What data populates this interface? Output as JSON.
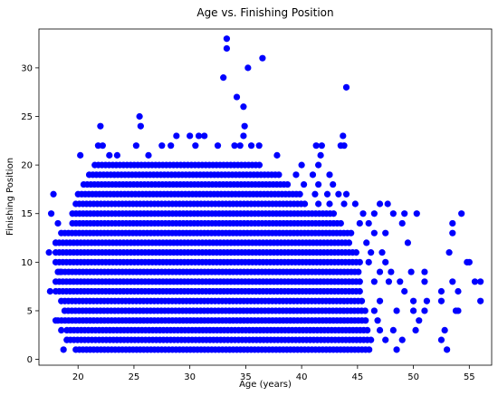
{
  "chart_data": {
    "type": "scatter",
    "title": "Age vs. Finishing Position",
    "xlabel": "Age (years)",
    "ylabel": "Finishing Position",
    "xlim": [
      16.5,
      57.0
    ],
    "ylim": [
      -0.6,
      34.0
    ],
    "xticks": [
      20,
      25,
      30,
      35,
      40,
      45,
      50,
      55
    ],
    "yticks": [
      0,
      5,
      10,
      15,
      20,
      25,
      30
    ],
    "grid": false,
    "marker_color": "#0000ff",
    "dense_band": {
      "description": "every integer position is densely populated across the age range",
      "rows": [
        {
          "y": 1,
          "x_from": 19.8,
          "x_to": 46.3
        },
        {
          "y": 2,
          "x_from": 19.0,
          "x_to": 46.5
        },
        {
          "y": 3,
          "x_from": 19.0,
          "x_to": 46.0
        },
        {
          "y": 4,
          "x_from": 18.2,
          "x_to": 45.8
        },
        {
          "y": 5,
          "x_from": 18.8,
          "x_to": 45.8
        },
        {
          "y": 6,
          "x_from": 18.5,
          "x_to": 45.5
        },
        {
          "y": 7,
          "x_from": 18.0,
          "x_to": 45.3
        },
        {
          "y": 8,
          "x_from": 18.0,
          "x_to": 45.3
        },
        {
          "y": 9,
          "x_from": 18.2,
          "x_to": 45.3
        },
        {
          "y": 10,
          "x_from": 18.0,
          "x_to": 45.3
        },
        {
          "y": 11,
          "x_from": 18.0,
          "x_to": 45.0
        },
        {
          "y": 12,
          "x_from": 18.0,
          "x_to": 44.5
        },
        {
          "y": 13,
          "x_from": 18.5,
          "x_to": 44.5
        },
        {
          "y": 14,
          "x_from": 19.5,
          "x_to": 43.5
        },
        {
          "y": 15,
          "x_from": 19.5,
          "x_to": 43.0
        },
        {
          "y": 16,
          "x_from": 19.8,
          "x_to": 40.5
        },
        {
          "y": 17,
          "x_from": 20.0,
          "x_to": 40.0
        },
        {
          "y": 18,
          "x_from": 20.5,
          "x_to": 39.0
        },
        {
          "y": 19,
          "x_from": 21.0,
          "x_to": 38.0
        },
        {
          "y": 20,
          "x_from": 21.5,
          "x_to": 36.5
        }
      ]
    },
    "points": [
      {
        "x": 17.8,
        "y": 17
      },
      {
        "x": 17.6,
        "y": 15
      },
      {
        "x": 18.0,
        "y": 12
      },
      {
        "x": 17.4,
        "y": 11
      },
      {
        "x": 17.5,
        "y": 7
      },
      {
        "x": 18.0,
        "y": 4
      },
      {
        "x": 18.5,
        "y": 3
      },
      {
        "x": 18.7,
        "y": 1
      },
      {
        "x": 18.4,
        "y": 9
      },
      {
        "x": 19.0,
        "y": 2
      },
      {
        "x": 18.2,
        "y": 14
      },
      {
        "x": 20.2,
        "y": 21
      },
      {
        "x": 22.0,
        "y": 24
      },
      {
        "x": 22.2,
        "y": 22
      },
      {
        "x": 21.8,
        "y": 22
      },
      {
        "x": 22.8,
        "y": 21
      },
      {
        "x": 23.5,
        "y": 21
      },
      {
        "x": 25.5,
        "y": 25
      },
      {
        "x": 25.6,
        "y": 24
      },
      {
        "x": 25.2,
        "y": 22
      },
      {
        "x": 26.3,
        "y": 21
      },
      {
        "x": 27.5,
        "y": 22
      },
      {
        "x": 28.8,
        "y": 23
      },
      {
        "x": 28.3,
        "y": 22
      },
      {
        "x": 30.0,
        "y": 23
      },
      {
        "x": 30.8,
        "y": 23
      },
      {
        "x": 31.3,
        "y": 23
      },
      {
        "x": 30.5,
        "y": 22
      },
      {
        "x": 32.5,
        "y": 22
      },
      {
        "x": 34.0,
        "y": 22
      },
      {
        "x": 34.8,
        "y": 23
      },
      {
        "x": 34.5,
        "y": 22
      },
      {
        "x": 35.5,
        "y": 22
      },
      {
        "x": 36.2,
        "y": 22
      },
      {
        "x": 37.8,
        "y": 21
      },
      {
        "x": 33.3,
        "y": 33
      },
      {
        "x": 33.3,
        "y": 32
      },
      {
        "x": 36.5,
        "y": 31
      },
      {
        "x": 35.2,
        "y": 30
      },
      {
        "x": 33.0,
        "y": 29
      },
      {
        "x": 34.2,
        "y": 27
      },
      {
        "x": 34.8,
        "y": 26
      },
      {
        "x": 34.9,
        "y": 24
      },
      {
        "x": 44.0,
        "y": 28
      },
      {
        "x": 43.7,
        "y": 23
      },
      {
        "x": 43.8,
        "y": 22
      },
      {
        "x": 43.5,
        "y": 22
      },
      {
        "x": 41.3,
        "y": 22
      },
      {
        "x": 41.8,
        "y": 22
      },
      {
        "x": 41.7,
        "y": 21
      },
      {
        "x": 41.5,
        "y": 20
      },
      {
        "x": 40.0,
        "y": 20
      },
      {
        "x": 42.5,
        "y": 19
      },
      {
        "x": 41.0,
        "y": 19
      },
      {
        "x": 39.5,
        "y": 19
      },
      {
        "x": 42.8,
        "y": 18
      },
      {
        "x": 41.5,
        "y": 18
      },
      {
        "x": 40.2,
        "y": 18
      },
      {
        "x": 41.2,
        "y": 17
      },
      {
        "x": 42.3,
        "y": 17
      },
      {
        "x": 43.3,
        "y": 17
      },
      {
        "x": 44.0,
        "y": 17
      },
      {
        "x": 41.5,
        "y": 16
      },
      {
        "x": 42.5,
        "y": 16
      },
      {
        "x": 43.8,
        "y": 16
      },
      {
        "x": 44.8,
        "y": 16
      },
      {
        "x": 47.0,
        "y": 16
      },
      {
        "x": 47.7,
        "y": 16
      },
      {
        "x": 45.5,
        "y": 15
      },
      {
        "x": 46.5,
        "y": 15
      },
      {
        "x": 48.2,
        "y": 15
      },
      {
        "x": 49.2,
        "y": 15
      },
      {
        "x": 50.3,
        "y": 15
      },
      {
        "x": 45.2,
        "y": 14
      },
      {
        "x": 46.0,
        "y": 14
      },
      {
        "x": 49.0,
        "y": 14
      },
      {
        "x": 46.5,
        "y": 13
      },
      {
        "x": 47.5,
        "y": 13
      },
      {
        "x": 45.8,
        "y": 12
      },
      {
        "x": 49.5,
        "y": 12
      },
      {
        "x": 46.2,
        "y": 11
      },
      {
        "x": 47.2,
        "y": 11
      },
      {
        "x": 46.0,
        "y": 10
      },
      {
        "x": 47.5,
        "y": 10
      },
      {
        "x": 47.0,
        "y": 9
      },
      {
        "x": 48.0,
        "y": 9
      },
      {
        "x": 49.8,
        "y": 9
      },
      {
        "x": 51.0,
        "y": 9
      },
      {
        "x": 46.5,
        "y": 8
      },
      {
        "x": 47.8,
        "y": 8
      },
      {
        "x": 48.8,
        "y": 8
      },
      {
        "x": 51.0,
        "y": 8
      },
      {
        "x": 49.2,
        "y": 7
      },
      {
        "x": 52.5,
        "y": 7
      },
      {
        "x": 47.0,
        "y": 6
      },
      {
        "x": 50.0,
        "y": 6
      },
      {
        "x": 51.2,
        "y": 6
      },
      {
        "x": 52.5,
        "y": 6
      },
      {
        "x": 46.5,
        "y": 5
      },
      {
        "x": 48.5,
        "y": 5
      },
      {
        "x": 50.0,
        "y": 5
      },
      {
        "x": 51.0,
        "y": 5
      },
      {
        "x": 46.8,
        "y": 4
      },
      {
        "x": 50.5,
        "y": 4
      },
      {
        "x": 47.0,
        "y": 3
      },
      {
        "x": 48.2,
        "y": 3
      },
      {
        "x": 50.2,
        "y": 3
      },
      {
        "x": 52.8,
        "y": 3
      },
      {
        "x": 47.5,
        "y": 2
      },
      {
        "x": 49.0,
        "y": 2
      },
      {
        "x": 52.5,
        "y": 2
      },
      {
        "x": 53.0,
        "y": 1
      },
      {
        "x": 48.5,
        "y": 1
      },
      {
        "x": 53.5,
        "y": 14
      },
      {
        "x": 54.3,
        "y": 15
      },
      {
        "x": 53.5,
        "y": 13
      },
      {
        "x": 53.2,
        "y": 11
      },
      {
        "x": 54.8,
        "y": 10
      },
      {
        "x": 55.0,
        "y": 10
      },
      {
        "x": 53.5,
        "y": 8
      },
      {
        "x": 55.5,
        "y": 8
      },
      {
        "x": 56.0,
        "y": 8
      },
      {
        "x": 54.0,
        "y": 7
      },
      {
        "x": 56.0,
        "y": 6
      },
      {
        "x": 54.0,
        "y": 5
      },
      {
        "x": 53.8,
        "y": 5
      }
    ]
  }
}
